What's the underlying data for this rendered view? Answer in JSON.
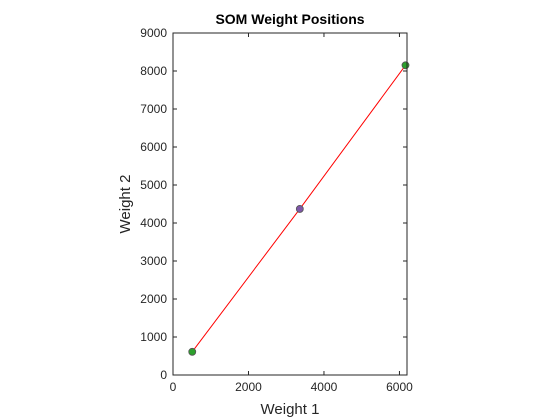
{
  "chart_data": {
    "type": "line",
    "title": "SOM Weight Positions",
    "xlabel": "Weight 1",
    "ylabel": "Weight 2",
    "xlim": [
      0,
      6200
    ],
    "ylim": [
      0,
      9000
    ],
    "xticks": [
      0,
      2000,
      4000,
      6000
    ],
    "yticks": [
      0,
      1000,
      2000,
      3000,
      4000,
      5000,
      6000,
      7000,
      8000,
      9000
    ],
    "grid": false,
    "series": [
      {
        "x": [
          510,
          3360,
          6160
        ],
        "y": [
          610,
          4370,
          8150
        ],
        "line_color": "#ff0000",
        "marker_colors": [
          "#2ca02c",
          "#7e57a8",
          "#2ca02c"
        ]
      }
    ]
  }
}
